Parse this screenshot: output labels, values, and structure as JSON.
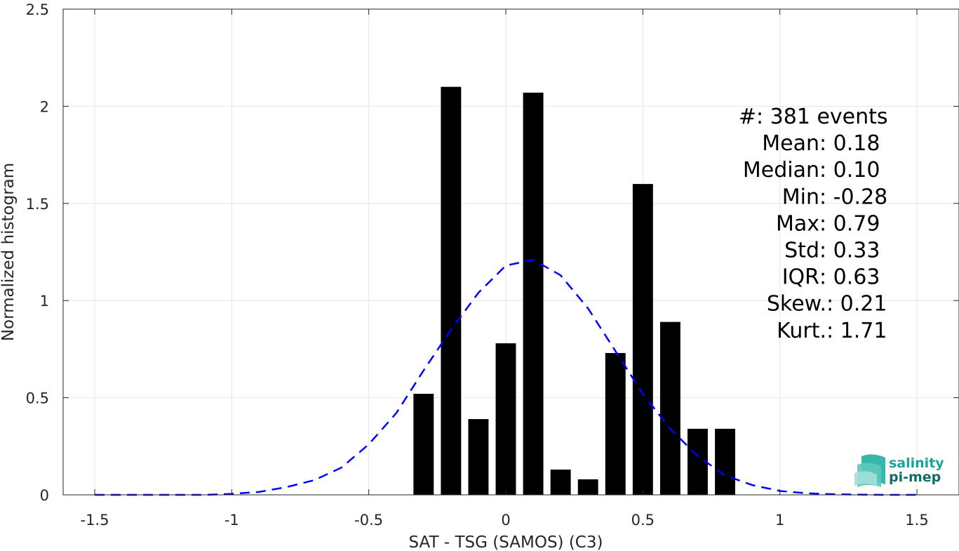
{
  "chart_data": {
    "type": "bar",
    "xlabel": "SAT - TSG (SAMOS) (C3)",
    "ylabel": "Normalized histogram",
    "xlim": [
      -1.5,
      1.5
    ],
    "ylim": [
      0,
      2.5
    ],
    "grid": true,
    "x_ticks": [
      -1.5,
      -1,
      -0.5,
      0,
      0.5,
      1,
      1.5
    ],
    "x_tick_labels": [
      "-1.5",
      "-1",
      "-0.5",
      "0",
      "0.5",
      "1",
      "1.5"
    ],
    "y_ticks": [
      0,
      0.5,
      1,
      1.5,
      2,
      2.5
    ],
    "y_tick_labels": [
      "0",
      "0.5",
      "1",
      "1.5",
      "2",
      "2.5"
    ],
    "bin_width": 0.1,
    "bars": {
      "x": [
        -0.3,
        -0.2,
        -0.1,
        0.0,
        0.1,
        0.2,
        0.3,
        0.4,
        0.5,
        0.6,
        0.7,
        0.8
      ],
      "values": [
        0.52,
        2.1,
        0.39,
        0.78,
        2.07,
        0.13,
        0.08,
        0.73,
        1.6,
        0.89,
        0.34,
        0.34
      ],
      "color": "#000000"
    },
    "fit_curve": {
      "style": "dashed",
      "color": "#0000ff",
      "x": [
        -1.5,
        -1.4,
        -1.3,
        -1.2,
        -1.1,
        -1.0,
        -0.9,
        -0.8,
        -0.7,
        -0.6,
        -0.5,
        -0.4,
        -0.3,
        -0.2,
        -0.1,
        0.0,
        0.1,
        0.2,
        0.3,
        0.4,
        0.5,
        0.6,
        0.7,
        0.8,
        0.9,
        1.0,
        1.1,
        1.2,
        1.3,
        1.4,
        1.5
      ],
      "y": [
        0,
        0,
        0,
        0,
        0,
        0.005,
        0.015,
        0.04,
        0.075,
        0.14,
        0.26,
        0.42,
        0.64,
        0.85,
        1.04,
        1.18,
        1.21,
        1.13,
        0.96,
        0.74,
        0.52,
        0.34,
        0.2,
        0.1,
        0.05,
        0.02,
        0.008,
        0.003,
        0.001,
        0,
        0
      ]
    },
    "annotations": [
      {
        "label": "#  ",
        "value": ": 381 events"
      },
      {
        "label": "Mean ",
        "value": ": 0.18"
      },
      {
        "label": "Median ",
        "value": ": 0.10"
      },
      {
        "label": "Min ",
        "value": ": -0.28"
      },
      {
        "label": "Max ",
        "value": ": 0.79"
      },
      {
        "label": "Std ",
        "value": ": 0.33"
      },
      {
        "label": "IQR ",
        "value": ": 0.63"
      },
      {
        "label": "Skew. ",
        "value": ": 0.21"
      },
      {
        "label": "Kurt. ",
        "value": ": 1.71"
      }
    ]
  },
  "logo": {
    "line1": "salinity",
    "line2": "pi-mep",
    "color1": "#1aa39a",
    "color2": "#0d6e68"
  }
}
